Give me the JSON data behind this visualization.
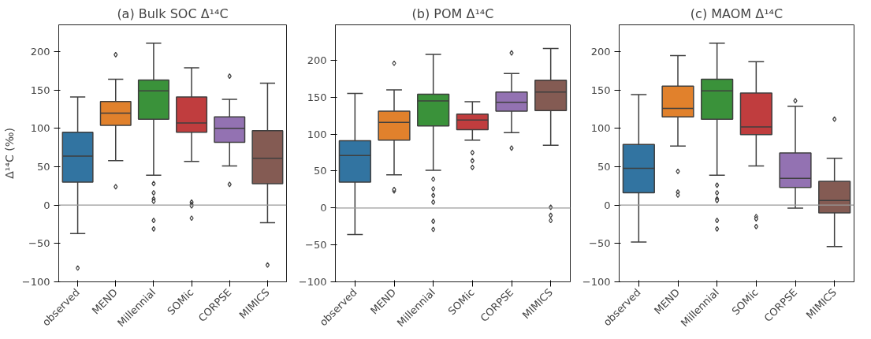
{
  "chart_data": [
    {
      "type": "box",
      "title": "(a) Bulk SOC Δ¹⁴C",
      "ylabel": "Δ¹⁴C (‰)",
      "categories": [
        "observed",
        "MEND",
        "Millennial",
        "SOMic",
        "CORPSE",
        "MIMICS"
      ],
      "colors": [
        "#3274a1",
        "#e1812c",
        "#3a923a",
        "#c03d3e",
        "#9372b2",
        "#845b53"
      ],
      "boxes": [
        {
          "low": -37,
          "q1": 30,
          "median": 64,
          "q3": 95,
          "high": 141,
          "outliers": [
            -82
          ]
        },
        {
          "low": 58,
          "q1": 104,
          "median": 120,
          "q3": 135,
          "high": 164,
          "outliers": [
            24,
            196
          ]
        },
        {
          "low": 39,
          "q1": 112,
          "median": 149,
          "q3": 163,
          "high": 211,
          "outliers": [
            28,
            16,
            8,
            5,
            -20,
            -31
          ]
        },
        {
          "low": 57,
          "q1": 95,
          "median": 107,
          "q3": 141,
          "high": 179,
          "outliers": [
            4,
            1,
            -1,
            -17
          ]
        },
        {
          "low": 51,
          "q1": 82,
          "median": 100,
          "q3": 115,
          "high": 138,
          "outliers": [
            27,
            168
          ]
        },
        {
          "low": -23,
          "q1": 28,
          "median": 61,
          "q3": 97,
          "high": 159,
          "outliers": [
            -78
          ]
        }
      ],
      "ylim": [
        -100,
        235
      ],
      "yticks": [
        -100,
        -50,
        0,
        50,
        100,
        150,
        200
      ],
      "grid": false,
      "marker": "diamond",
      "ref_lines": [
        {
          "axis": "y",
          "value": 0,
          "color": "#999999"
        }
      ]
    },
    {
      "type": "box",
      "title": "(b) POM Δ¹⁴C",
      "categories": [
        "observed",
        "MEND",
        "Millennial",
        "SOMic",
        "CORPSE",
        "MIMICS"
      ],
      "colors": [
        "#3274a1",
        "#e1812c",
        "#3a923a",
        "#c03d3e",
        "#9372b2",
        "#845b53"
      ],
      "boxes": [
        {
          "low": -36,
          "q1": 35,
          "median": 71,
          "q3": 91,
          "high": 155
        },
        {
          "low": 45,
          "q1": 92,
          "median": 116,
          "q3": 131,
          "high": 160,
          "outliers": [
            23,
            25,
            196
          ]
        },
        {
          "low": 51,
          "q1": 111,
          "median": 145,
          "q3": 154,
          "high": 208,
          "outliers": [
            39,
            26,
            17,
            8,
            -18,
            -29
          ]
        },
        {
          "low": 92,
          "q1": 106,
          "median": 119,
          "q3": 127,
          "high": 144,
          "outliers": [
            75,
            64,
            55
          ]
        },
        {
          "low": 102,
          "q1": 131,
          "median": 143,
          "q3": 157,
          "high": 182,
          "outliers": [
            81,
            210
          ]
        },
        {
          "low": 85,
          "q1": 132,
          "median": 157,
          "q3": 173,
          "high": 216,
          "outliers": [
            1,
            -10,
            -17
          ]
        }
      ],
      "ylim": [
        -100,
        248
      ],
      "yticks": [
        -100,
        -50,
        0,
        50,
        100,
        150,
        200
      ],
      "grid": false,
      "marker": "diamond",
      "ref_lines": [
        {
          "axis": "y",
          "value": 0,
          "color": "#999999"
        }
      ]
    },
    {
      "type": "box",
      "title": "(c) MAOM Δ¹⁴C",
      "categories": [
        "observed",
        "MEND",
        "Millennial",
        "SOMic",
        "CORPSE",
        "MIMICS"
      ],
      "colors": [
        "#3274a1",
        "#e1812c",
        "#3a923a",
        "#c03d3e",
        "#9372b2",
        "#845b53"
      ],
      "boxes": [
        {
          "low": -48,
          "q1": 16,
          "median": 48,
          "q3": 79,
          "high": 144
        },
        {
          "low": 77,
          "q1": 115,
          "median": 126,
          "q3": 155,
          "high": 195,
          "outliers": [
            44,
            17,
            13
          ]
        },
        {
          "low": 39,
          "q1": 112,
          "median": 149,
          "q3": 164,
          "high": 211,
          "outliers": [
            26,
            16,
            8,
            6,
            -20,
            -31
          ]
        },
        {
          "low": 51,
          "q1": 92,
          "median": 102,
          "q3": 146,
          "high": 187,
          "outliers": [
            -15,
            -18,
            -28
          ]
        },
        {
          "low": -4,
          "q1": 23,
          "median": 35,
          "q3": 68,
          "high": 129,
          "outliers": [
            136
          ]
        },
        {
          "low": -54,
          "q1": -10,
          "median": 6,
          "q3": 31,
          "high": 61,
          "outliers": [
            112
          ]
        }
      ],
      "ylim": [
        -100,
        235
      ],
      "yticks": [
        -100,
        -50,
        0,
        50,
        100,
        150,
        200
      ],
      "grid": false,
      "marker": "diamond",
      "ref_lines": [
        {
          "axis": "y",
          "value": 0,
          "color": "#999999"
        }
      ]
    }
  ]
}
